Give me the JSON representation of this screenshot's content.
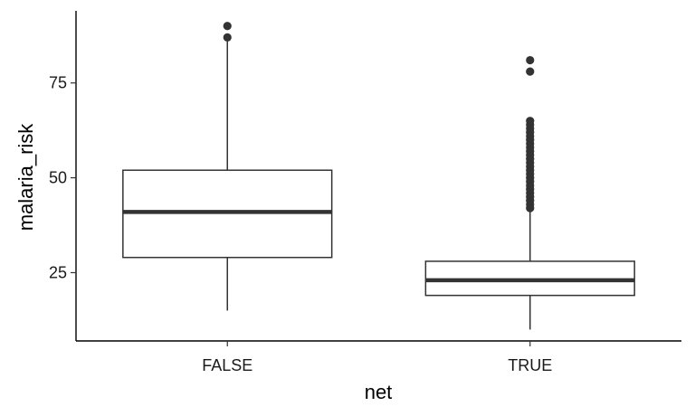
{
  "chart_data": {
    "type": "boxplot",
    "xlabel": "net",
    "ylabel": "malaria_risk",
    "categories": [
      "FALSE",
      "TRUE"
    ],
    "ylim": [
      7,
      94
    ],
    "yticks": [
      25,
      50,
      75
    ],
    "grid": false,
    "boxes": [
      {
        "category": "FALSE",
        "whisker_low": 15,
        "q1": 29,
        "median": 41,
        "q3": 52,
        "whisker_high": 87,
        "outliers": [
          87,
          90
        ]
      },
      {
        "category": "TRUE",
        "whisker_low": 10,
        "q1": 19,
        "median": 23,
        "q3": 28,
        "whisker_high": 42,
        "outliers": [
          42,
          43,
          44,
          45,
          46,
          47,
          48,
          49,
          50,
          51,
          52,
          53,
          54,
          55,
          56,
          57,
          58,
          59,
          60,
          61,
          62,
          63,
          64,
          65,
          78,
          81
        ]
      }
    ],
    "colors": {
      "stroke": "#333333",
      "fill": "#ffffff",
      "axis": "#000000"
    }
  }
}
